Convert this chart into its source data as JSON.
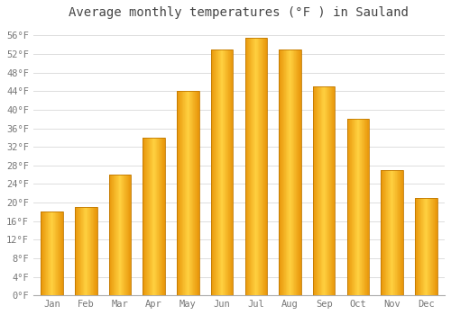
{
  "title": "Average monthly temperatures (°F ) in Sauland",
  "months": [
    "Jan",
    "Feb",
    "Mar",
    "Apr",
    "May",
    "Jun",
    "Jul",
    "Aug",
    "Sep",
    "Oct",
    "Nov",
    "Dec"
  ],
  "values": [
    18,
    19,
    26,
    34,
    44,
    53,
    55.5,
    53,
    45,
    38,
    27,
    21
  ],
  "bar_color_left": "#E8960A",
  "bar_color_center": "#FFD040",
  "bar_color_right": "#E8960A",
  "bar_edge_color": "#C07800",
  "ylim": [
    0,
    58
  ],
  "yticks": [
    0,
    4,
    8,
    12,
    16,
    20,
    24,
    28,
    32,
    36,
    40,
    44,
    48,
    52,
    56
  ],
  "ytick_labels": [
    "0°F",
    "4°F",
    "8°F",
    "12°F",
    "16°F",
    "20°F",
    "24°F",
    "28°F",
    "32°F",
    "36°F",
    "40°F",
    "44°F",
    "48°F",
    "52°F",
    "56°F"
  ],
  "background_color": "#FFFFFF",
  "grid_color": "#DDDDDD",
  "title_fontsize": 10,
  "tick_fontsize": 7.5,
  "bar_width": 0.65,
  "fig_width": 5.0,
  "fig_height": 3.5,
  "dpi": 100
}
